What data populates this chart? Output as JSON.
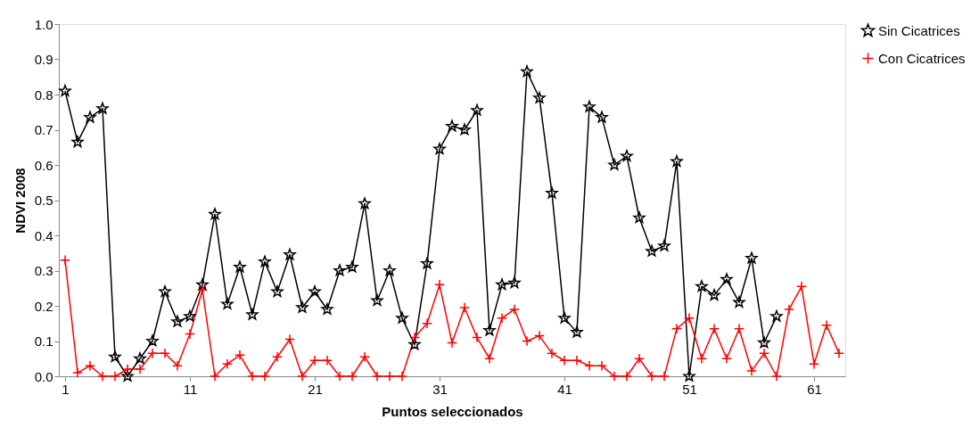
{
  "chart_data": {
    "type": "line",
    "xlabel": "Puntos seleccionados",
    "ylabel": "NDVI 2008",
    "xlim": [
      0.5,
      63.5
    ],
    "xticks": [
      1,
      11,
      21,
      31,
      41,
      51,
      61
    ],
    "ylim": [
      0,
      1
    ],
    "yticks": [
      {
        "value": 0,
        "label": "0.0"
      },
      0.1,
      0.2,
      0.3,
      0.4,
      0.5,
      0.6,
      0.7,
      0.8,
      0.9,
      {
        "value": 1,
        "label": "1.0"
      }
    ],
    "grid": false,
    "legend": "right",
    "line_style": "solid",
    "series": [
      {
        "name": "Sin Cicatrices",
        "color": "#000000",
        "marker": "star",
        "x": [
          1,
          2,
          3,
          4,
          5,
          6,
          7,
          8,
          9,
          10,
          11,
          12,
          13,
          14,
          15,
          16,
          17,
          18,
          19,
          20,
          21,
          22,
          23,
          24,
          25,
          26,
          27,
          28,
          29,
          30,
          31,
          32,
          33,
          34,
          35,
          36,
          37,
          38,
          39,
          40,
          41,
          42,
          43,
          44,
          45,
          46,
          47,
          48,
          49,
          50,
          51,
          52,
          53,
          54,
          55,
          56,
          57,
          58
        ],
        "values": [
          0.81,
          0.665,
          0.735,
          0.76,
          0.055,
          0.0,
          0.05,
          0.1,
          0.24,
          0.155,
          0.17,
          0.26,
          0.46,
          0.205,
          0.31,
          0.175,
          0.325,
          0.24,
          0.345,
          0.195,
          0.24,
          0.19,
          0.3,
          0.31,
          0.49,
          0.215,
          0.3,
          0.165,
          0.09,
          0.32,
          0.645,
          0.71,
          0.7,
          0.755,
          0.13,
          0.26,
          0.265,
          0.865,
          0.79,
          0.52,
          0.165,
          0.125,
          0.765,
          0.735,
          0.6,
          0.625,
          0.45,
          0.355,
          0.37,
          0.61,
          0.0,
          0.255,
          0.23,
          0.275,
          0.21,
          0.335,
          0.095,
          0.17
        ]
      },
      {
        "name": "Con Cicatrices",
        "color": "#ff0000",
        "marker": "cross",
        "x": [
          1,
          2,
          3,
          4,
          5,
          6,
          7,
          8,
          9,
          10,
          11,
          12,
          13,
          14,
          15,
          16,
          17,
          18,
          19,
          20,
          21,
          22,
          23,
          24,
          25,
          26,
          27,
          28,
          29,
          30,
          31,
          32,
          33,
          34,
          35,
          36,
          37,
          38,
          39,
          40,
          41,
          42,
          43,
          44,
          45,
          46,
          47,
          48,
          49,
          50,
          51,
          52,
          53,
          54,
          55,
          56,
          57,
          58,
          59,
          60,
          61,
          62,
          63
        ],
        "values": [
          0.33,
          0.01,
          0.03,
          0,
          0,
          0.02,
          0.02,
          0.065,
          0.065,
          0.03,
          0.12,
          0.245,
          0,
          0.035,
          0.06,
          0,
          0,
          0.055,
          0.105,
          0,
          0.045,
          0.045,
          0,
          0,
          0.055,
          0,
          0,
          0,
          0.11,
          0.15,
          0.26,
          0.095,
          0.195,
          0.11,
          0.05,
          0.165,
          0.19,
          0.1,
          0.115,
          0.065,
          0.045,
          0.045,
          0.03,
          0.03,
          0,
          0,
          0.05,
          0,
          0,
          0.135,
          0.165,
          0.05,
          0.135,
          0.05,
          0.135,
          0.015,
          0.065,
          0,
          0.19,
          0.255,
          0.035,
          0.145,
          0.065
        ]
      }
    ]
  }
}
